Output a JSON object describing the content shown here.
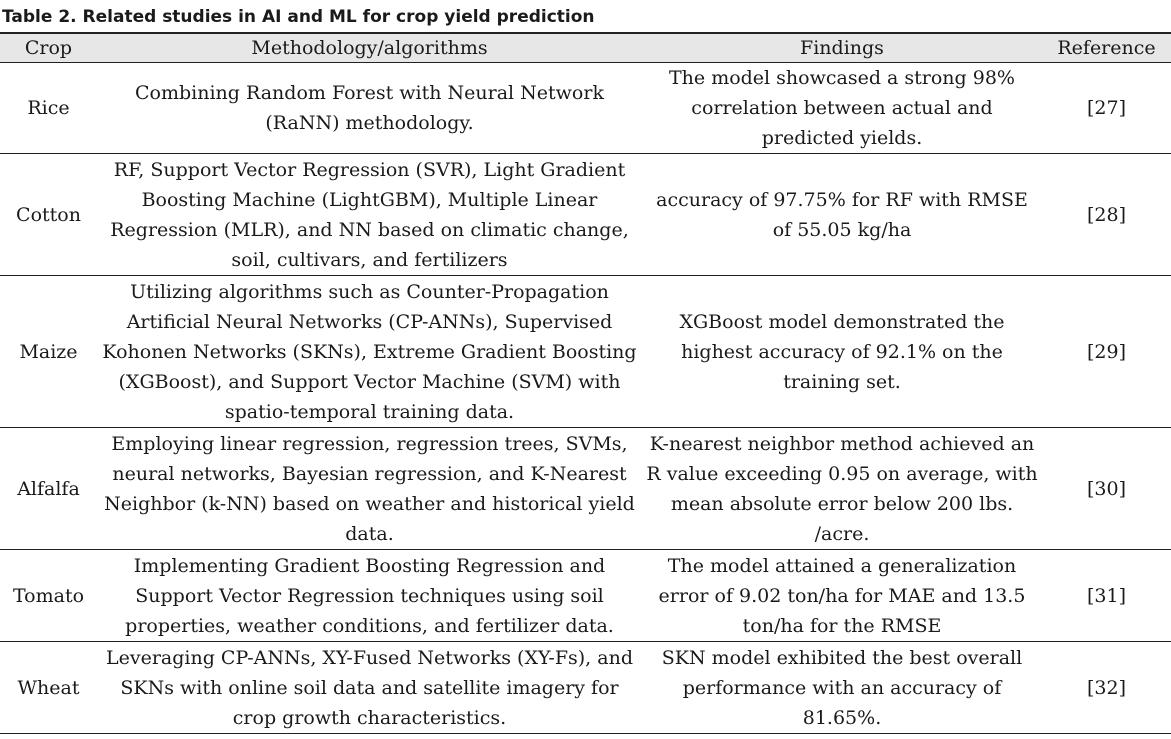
{
  "caption": "Table 2. Related studies in AI and ML for crop yield prediction",
  "columns": [
    "Crop",
    "Methodology/algorithms",
    "Findings",
    "Reference"
  ],
  "rows": [
    {
      "crop": "Rice",
      "methodology": "Combining Random Forest with Neural Network (RaNN) methodology.",
      "findings": "The model showcased a strong 98% correlation between actual and predicted yields.",
      "reference": "[27]"
    },
    {
      "crop": "Cotton",
      "methodology": "RF, Support Vector Regression (SVR), Light Gradient Boosting Machine (LightGBM), Multiple Linear Regression (MLR), and NN based on climatic change, soil, cultivars, and fertilizers",
      "findings": "accuracy of 97.75% for RF with RMSE of 55.05 kg/ha",
      "reference": "[28]"
    },
    {
      "crop": "Maize",
      "methodology": "Utilizing algorithms such as Counter-Propagation Artificial Neural Networks (CP-ANNs), Supervised Kohonen Networks (SKNs), Extreme Gradient Boosting (XGBoost), and Support Vector Machine (SVM) with spatio-temporal training data.",
      "findings": "XGBoost model demonstrated the highest accuracy of 92.1% on the training set.",
      "reference": "[29]"
    },
    {
      "crop": "Alfalfa",
      "methodology": "Employing linear regression, regression trees, SVMs, neural networks, Bayesian regression, and K-Nearest Neighbor (k-NN) based on weather and historical yield data.",
      "findings": "K-nearest neighbor method achieved an R value exceeding 0.95 on average, with mean absolute error below 200 lbs. /acre.",
      "reference": "[30]"
    },
    {
      "crop": "Tomato",
      "methodology": "Implementing Gradient Boosting Regression and Support Vector Regression techniques using soil properties, weather conditions, and fertilizer data.",
      "findings": "The model attained a generalization error of 9.02 ton/ha for MAE and 13.5 ton/ha for the RMSE",
      "reference": "[31]"
    },
    {
      "crop": "Wheat",
      "methodology": "Leveraging CP-ANNs, XY-Fused Networks (XY-Fs), and SKNs with online soil data and satellite imagery for crop growth characteristics.",
      "findings": "SKN model exhibited the best overall performance with an accuracy of 81.65%.",
      "reference": "[32]"
    }
  ]
}
